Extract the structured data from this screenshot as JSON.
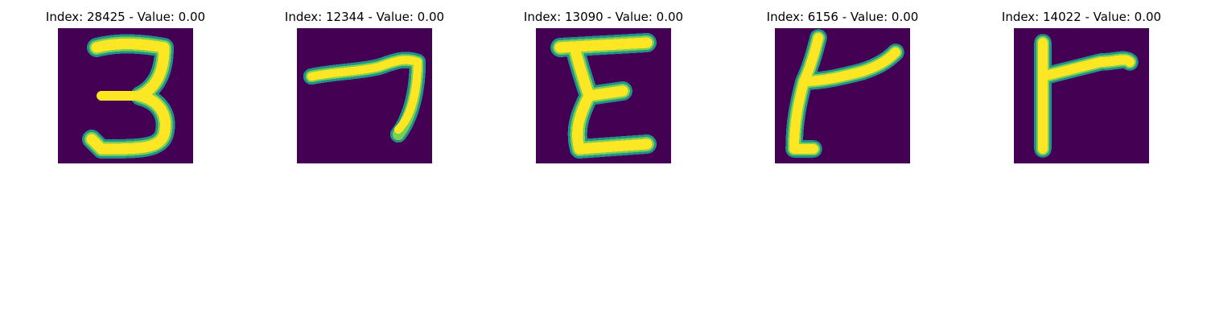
{
  "figure": {
    "panels": [
      {
        "title": "Index: 28425 - Value: 0.00",
        "glyph": "3"
      },
      {
        "title": "Index: 12344 - Value: 0.00",
        "glyph": "7"
      },
      {
        "title": "Index: 13090 - Value: 0.00",
        "glyph": "E"
      },
      {
        "title": "Index: 6156 - Value: 0.00",
        "glyph": "hooked-r"
      },
      {
        "title": "Index: 14022 - Value: 0.00",
        "glyph": "r"
      }
    ],
    "colors": {
      "background": "#440154",
      "stroke_edge": "#21918c",
      "stroke_mid": "#7ad151",
      "stroke_core": "#fde725"
    }
  }
}
